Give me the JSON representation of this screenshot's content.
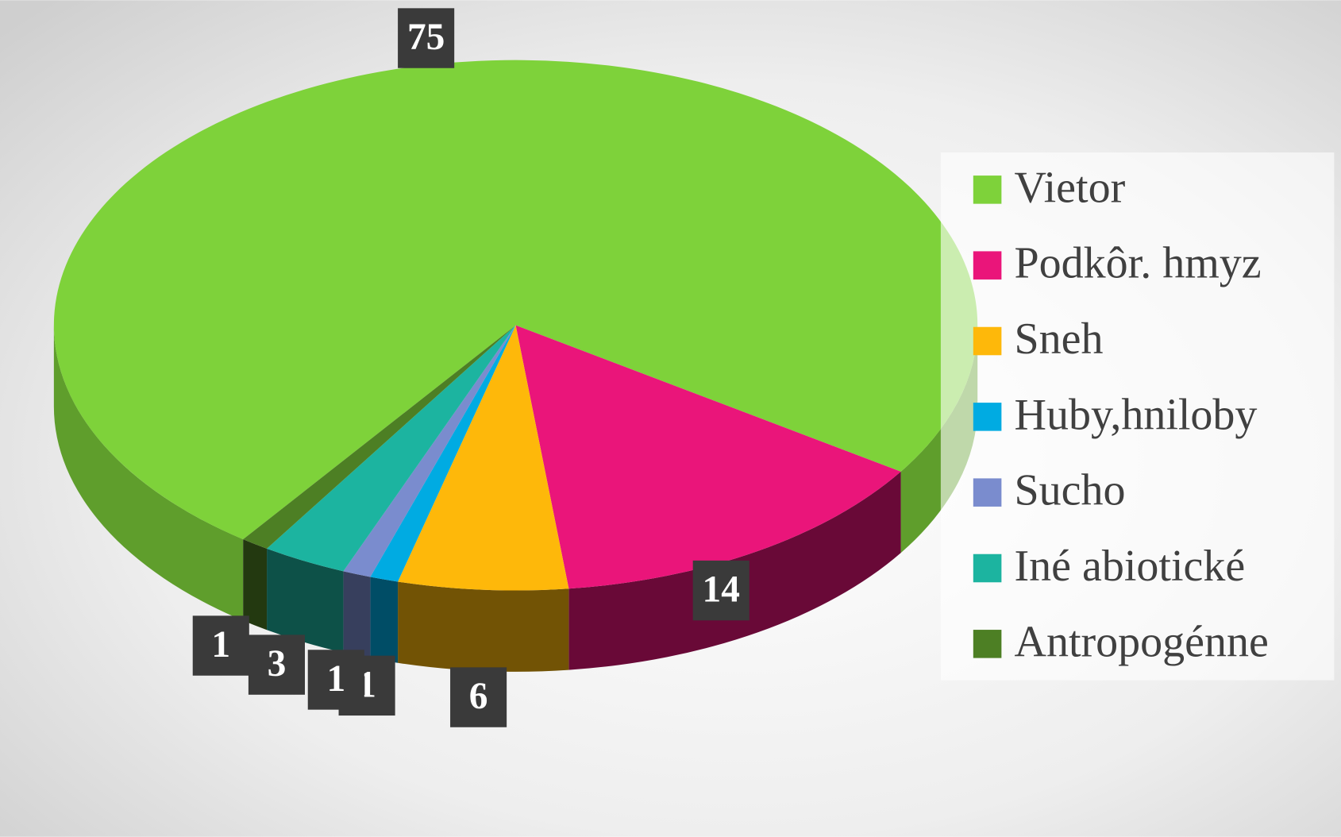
{
  "chart_data": {
    "type": "pie",
    "categories": [
      "Vietor",
      "Podkôr. hmyz",
      "Sneh",
      "Huby,hniloby",
      "Sucho",
      "Iné abiotické",
      "Antropogénne"
    ],
    "values": [
      75,
      14,
      6,
      1,
      1,
      3,
      1
    ],
    "colors": [
      "#7ed23a",
      "#ea157a",
      "#feb80a",
      "#00abe2",
      "#7a8cce",
      "#1cb4a0",
      "#4d7f24"
    ],
    "legend": "right"
  }
}
